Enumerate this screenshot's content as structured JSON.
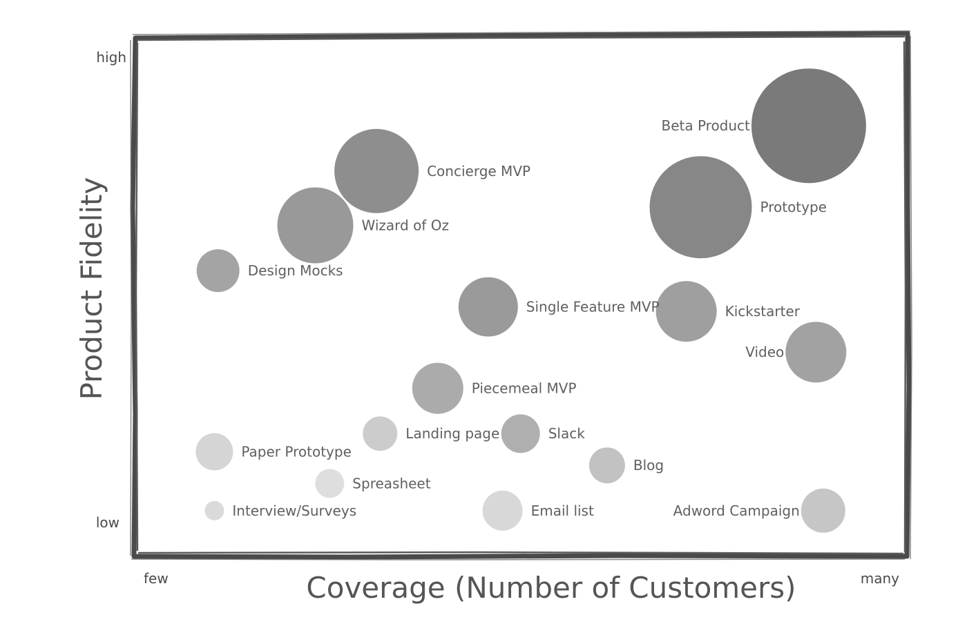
{
  "chart_data": {
    "type": "scatter",
    "variant": "bubble",
    "xlabel": "Coverage (Number of Customers)",
    "ylabel": "Product Fidelity",
    "x_ticks": {
      "low": "few",
      "high": "many"
    },
    "y_ticks": {
      "low": "low",
      "high": "high"
    },
    "xlim": [
      0,
      100
    ],
    "ylim": [
      0,
      100
    ],
    "grid": false,
    "legend": "none",
    "frame_color": "#4a4a4a",
    "points": [
      {
        "label": "Beta Product",
        "x": 90.5,
        "y": 89,
        "size": 83,
        "color": "#7a7a7a",
        "label_side": "left"
      },
      {
        "label": "Concierge MVP",
        "x": 30.5,
        "y": 79,
        "size": 61,
        "color": "#8e8e8e",
        "label_side": "right"
      },
      {
        "label": "Prototype",
        "x": 75.5,
        "y": 71,
        "size": 74,
        "color": "#878787",
        "label_side": "right"
      },
      {
        "label": "Wizard of Oz",
        "x": 22,
        "y": 67,
        "size": 55,
        "color": "#999999",
        "label_side": "right"
      },
      {
        "label": "Design Mocks",
        "x": 8.5,
        "y": 57,
        "size": 31,
        "color": "#a4a4a4",
        "label_side": "right"
      },
      {
        "label": "Single Feature MVP",
        "x": 46,
        "y": 49,
        "size": 43,
        "color": "#9a9a9a",
        "label_side": "right"
      },
      {
        "label": "Kickstarter",
        "x": 73.5,
        "y": 48,
        "size": 44,
        "color": "#9f9f9f",
        "label_side": "right"
      },
      {
        "label": "Video",
        "x": 91.5,
        "y": 39,
        "size": 44,
        "color": "#a2a2a2",
        "label_side": "left"
      },
      {
        "label": "Piecemeal MVP",
        "x": 39,
        "y": 31,
        "size": 37,
        "color": "#ababab",
        "label_side": "right"
      },
      {
        "label": "Landing page",
        "x": 31,
        "y": 21,
        "size": 25,
        "color": "#cccccc",
        "label_side": "right"
      },
      {
        "label": "Slack",
        "x": 50.5,
        "y": 21,
        "size": 28,
        "color": "#afafaf",
        "label_side": "right"
      },
      {
        "label": "Paper Prototype",
        "x": 8,
        "y": 17,
        "size": 27,
        "color": "#d5d5d5",
        "label_side": "right"
      },
      {
        "label": "Blog",
        "x": 62.5,
        "y": 14,
        "size": 26,
        "color": "#c2c2c2",
        "label_side": "right"
      },
      {
        "label": "Spreasheet",
        "x": 24,
        "y": 10,
        "size": 21,
        "color": "#dedede",
        "label_side": "right"
      },
      {
        "label": "Interview/Surveys",
        "x": 8,
        "y": 4,
        "size": 14,
        "color": "#dadada",
        "label_side": "right"
      },
      {
        "label": "Email list",
        "x": 48,
        "y": 4,
        "size": 29,
        "color": "#d8d8d8",
        "label_side": "right"
      },
      {
        "label": "Adword Campaign",
        "x": 92.5,
        "y": 4,
        "size": 32,
        "color": "#c6c6c6",
        "label_side": "left"
      }
    ]
  }
}
